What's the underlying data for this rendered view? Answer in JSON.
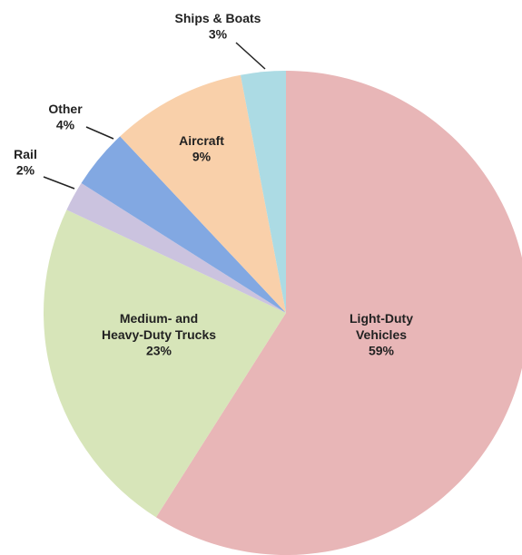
{
  "chart_data": {
    "type": "pie",
    "categories": [
      "Light-Duty\nVehicles",
      "Medium- and\nHeavy-Duty Trucks",
      "Rail",
      "Other",
      "Aircraft",
      "Ships & Boats"
    ],
    "values": [
      59,
      23,
      2,
      4,
      9,
      3
    ],
    "value_labels": [
      "59%",
      "23%",
      "2%",
      "4%",
      "9%",
      "3%"
    ],
    "colors": [
      "#e8b6b7",
      "#d7e5b9",
      "#cbc3df",
      "#82a8e2",
      "#f9d0aa",
      "#acdbe4"
    ]
  }
}
